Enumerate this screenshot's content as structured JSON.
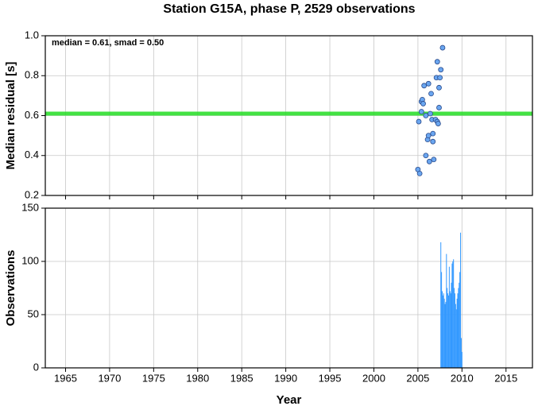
{
  "title": "Station G15A, phase P, 2529 observations",
  "chart_data": [
    {
      "type": "scatter",
      "y_label": "Median residual [s]",
      "annotation": "median = 0.61, smad = 0.50",
      "hline": {
        "value": 0.61,
        "color": "#22dd22"
      },
      "color": "#6aa6f0",
      "x": [
        2005.0,
        2005.2,
        2005.1,
        2005.4,
        2005.5,
        2005.6,
        2005.4,
        2005.7,
        2005.9,
        2005.9,
        2006.1,
        2006.2,
        2006.2,
        2006.3,
        2006.4,
        2006.5,
        2006.6,
        2006.7,
        2006.8,
        2006.7,
        2007.0,
        2007.1,
        2007.2,
        2007.2,
        2007.3,
        2007.4,
        2007.4,
        2007.5,
        2007.6,
        2007.8
      ],
      "values": [
        0.33,
        0.31,
        0.57,
        0.67,
        0.68,
        0.66,
        0.62,
        0.75,
        0.6,
        0.4,
        0.48,
        0.5,
        0.76,
        0.37,
        0.61,
        0.71,
        0.58,
        0.51,
        0.38,
        0.47,
        0.58,
        0.79,
        0.57,
        0.87,
        0.56,
        0.64,
        0.74,
        0.79,
        0.83,
        0.94
      ],
      "xlim": [
        1962.7,
        2018.0
      ],
      "ylim": [
        0.2,
        1.0
      ],
      "yticks": [
        {
          "value": 1,
          "label": "1.0"
        },
        0.8,
        0.6,
        0.4,
        0.2
      ],
      "grid": true
    },
    {
      "type": "bar",
      "y_label": "Observations",
      "x_label": "Year",
      "color": "#3399ff",
      "x": [
        2007.6,
        2007.68,
        2007.76,
        2007.84,
        2007.92,
        2008.0,
        2008.08,
        2008.16,
        2008.24,
        2008.32,
        2008.4,
        2008.48,
        2008.56,
        2008.64,
        2008.72,
        2008.8,
        2008.88,
        2008.96,
        2009.04,
        2009.12,
        2009.2,
        2009.28,
        2009.36,
        2009.44,
        2009.52,
        2009.6,
        2009.68,
        2009.76,
        2009.84,
        2009.92,
        2010.0
      ],
      "values": [
        118,
        90,
        72,
        68,
        70,
        65,
        60,
        62,
        107,
        75,
        70,
        68,
        95,
        72,
        70,
        80,
        98,
        100,
        102,
        75,
        70,
        60,
        55,
        65,
        70,
        75,
        80,
        90,
        127,
        28,
        15
      ],
      "xlim": [
        1962.7,
        2018.0
      ],
      "ylim": [
        0,
        150
      ],
      "xticks": [
        1965,
        1970,
        1975,
        1980,
        1985,
        1990,
        1995,
        2000,
        2005,
        2010,
        2015
      ],
      "yticks": [
        0,
        50,
        100,
        150
      ],
      "grid": true
    }
  ]
}
